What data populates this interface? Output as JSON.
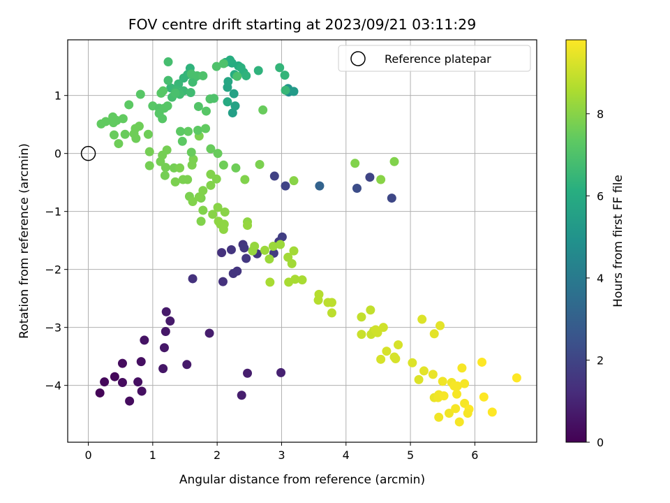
{
  "chart_data": {
    "type": "scatter",
    "title": "FOV centre drift starting at 2023/09/21 03:11:29",
    "xlabel": "Angular distance from reference (arcmin)",
    "ylabel": "Rotation from reference (arcmin)",
    "xlim": [
      -0.32,
      6.96
    ],
    "ylim": [
      -4.98,
      1.96
    ],
    "xticks": [
      0,
      1,
      2,
      3,
      4,
      5,
      6
    ],
    "yticks": [
      -4,
      -3,
      -2,
      -1,
      0,
      1
    ],
    "grid": true,
    "legend": {
      "position": "top-right",
      "entries": [
        "Reference platepar"
      ]
    },
    "reference_point": {
      "x": 0,
      "y": 0
    },
    "colorbar": {
      "label": "Hours from first FF file",
      "range": [
        0,
        9.8
      ],
      "ticks": [
        0,
        2,
        4,
        6,
        8
      ],
      "colormap": "viridis"
    },
    "points": [
      [
        0.18,
        -4.13,
        0.1
      ],
      [
        0.25,
        -3.94,
        0.2
      ],
      [
        0.41,
        -3.85,
        0.2
      ],
      [
        0.53,
        -3.95,
        0.3
      ],
      [
        0.53,
        -3.62,
        0.3
      ],
      [
        0.64,
        -4.27,
        0.3
      ],
      [
        0.77,
        -3.94,
        0.4
      ],
      [
        0.83,
        -4.1,
        0.4
      ],
      [
        0.82,
        -3.59,
        0.4
      ],
      [
        0.87,
        -3.22,
        0.5
      ],
      [
        1.16,
        -3.71,
        0.6
      ],
      [
        1.18,
        -3.35,
        0.6
      ],
      [
        1.2,
        -3.07,
        0.6
      ],
      [
        1.21,
        -2.73,
        0.7
      ],
      [
        1.27,
        -2.89,
        0.7
      ],
      [
        1.53,
        -3.64,
        0.7
      ],
      [
        1.88,
        -3.1,
        0.8
      ],
      [
        2.38,
        -4.17,
        0.8
      ],
      [
        2.47,
        -3.79,
        0.8
      ],
      [
        2.99,
        -3.78,
        0.9
      ],
      [
        1.62,
        -2.16,
        1.4
      ],
      [
        2.07,
        -1.71,
        1.4
      ],
      [
        2.09,
        -2.21,
        1.4
      ],
      [
        2.22,
        -1.66,
        1.5
      ],
      [
        2.25,
        -2.07,
        1.5
      ],
      [
        2.31,
        -2.03,
        1.5
      ],
      [
        2.4,
        -1.57,
        1.5
      ],
      [
        2.45,
        -1.81,
        1.6
      ],
      [
        2.42,
        -1.63,
        1.6
      ],
      [
        2.62,
        -1.73,
        1.6
      ],
      [
        2.88,
        -1.72,
        1.7
      ],
      [
        2.96,
        -1.52,
        1.7
      ],
      [
        3.01,
        -1.44,
        1.8
      ],
      [
        2.89,
        -0.39,
        1.9
      ],
      [
        3.06,
        -0.56,
        2.0
      ],
      [
        4.37,
        -0.41,
        2.0
      ],
      [
        4.71,
        -0.77,
        2.1
      ],
      [
        4.17,
        -0.6,
        2.3
      ],
      [
        3.59,
        -0.56,
        3.1
      ],
      [
        3.11,
        1.06,
        4.8
      ],
      [
        3.1,
        1.12,
        5.1
      ],
      [
        3.19,
        1.07,
        5.3
      ],
      [
        2.24,
        0.7,
        5.5
      ],
      [
        2.28,
        0.82,
        5.6
      ],
      [
        2.26,
        1.03,
        5.6
      ],
      [
        2.16,
        1.14,
        5.7
      ],
      [
        2.17,
        1.24,
        5.8
      ],
      [
        2.16,
        0.89,
        5.9
      ],
      [
        2.27,
        1.36,
        6.0
      ],
      [
        2.33,
        1.51,
        6.0
      ],
      [
        2.23,
        1.56,
        6.0
      ],
      [
        2.2,
        1.61,
        6.1
      ],
      [
        2.13,
        1.57,
        6.1
      ],
      [
        2.37,
        1.48,
        6.2
      ],
      [
        2.41,
        1.4,
        6.2
      ],
      [
        2.45,
        1.34,
        6.3
      ],
      [
        2.64,
        1.43,
        6.3
      ],
      [
        2.97,
        1.48,
        6.4
      ],
      [
        3.05,
        1.35,
        6.4
      ],
      [
        3.06,
        1.09,
        6.5
      ],
      [
        1.58,
        1.47,
        6.3
      ],
      [
        1.54,
        1.36,
        6.4
      ],
      [
        1.48,
        1.3,
        6.4
      ],
      [
        1.4,
        1.2,
        6.5
      ],
      [
        1.28,
        1.13,
        6.5
      ],
      [
        1.36,
        1.09,
        6.6
      ],
      [
        1.48,
        1.08,
        6.6
      ],
      [
        1.59,
        1.05,
        6.7
      ],
      [
        1.62,
        1.23,
        6.7
      ],
      [
        1.66,
        1.32,
        6.7
      ],
      [
        1.42,
        1.02,
        6.7
      ],
      [
        1.3,
        0.97,
        6.8
      ],
      [
        1.24,
        1.26,
        6.8
      ],
      [
        1.24,
        1.58,
        6.8
      ],
      [
        1.35,
        1.04,
        6.9
      ],
      [
        1.6,
        1.37,
        6.9
      ],
      [
        1.69,
        1.34,
        6.9
      ],
      [
        1.78,
        1.34,
        7.0
      ],
      [
        1.99,
        1.5,
        7.0
      ],
      [
        2.1,
        1.55,
        7.0
      ],
      [
        2.31,
        1.33,
        6.9
      ],
      [
        1.89,
        0.94,
        7.1
      ],
      [
        1.95,
        0.95,
        7.0
      ],
      [
        1.83,
        0.73,
        7.2
      ],
      [
        1.71,
        0.81,
        7.1
      ],
      [
        1.0,
        0.82,
        7.2
      ],
      [
        1.1,
        0.78,
        7.1
      ],
      [
        1.1,
        0.69,
        7.2
      ],
      [
        1.18,
        0.78,
        7.2
      ],
      [
        1.15,
        0.6,
        7.2
      ],
      [
        1.23,
        0.82,
        7.2
      ],
      [
        1.13,
        1.04,
        7.2
      ],
      [
        1.16,
        1.08,
        7.2
      ],
      [
        0.81,
        1.02,
        7.2
      ],
      [
        0.63,
        0.84,
        7.3
      ],
      [
        0.38,
        0.63,
        7.4
      ],
      [
        0.27,
        0.55,
        7.4
      ],
      [
        0.2,
        0.51,
        7.4
      ],
      [
        0.44,
        0.57,
        7.4
      ],
      [
        0.39,
        0.53,
        7.4
      ],
      [
        0.54,
        0.6,
        7.4
      ],
      [
        0.57,
        0.33,
        7.5
      ],
      [
        0.4,
        0.32,
        7.5
      ],
      [
        0.47,
        0.17,
        7.6
      ],
      [
        0.71,
        0.34,
        7.6
      ],
      [
        0.74,
        0.26,
        7.6
      ],
      [
        0.73,
        0.43,
        7.6
      ],
      [
        0.79,
        0.47,
        7.6
      ],
      [
        0.93,
        0.33,
        7.6
      ],
      [
        0.95,
        0.03,
        7.7
      ],
      [
        0.95,
        -0.21,
        7.7
      ],
      [
        1.12,
        -0.14,
        7.7
      ],
      [
        1.15,
        -0.03,
        7.7
      ],
      [
        1.22,
        0.06,
        7.7
      ],
      [
        1.2,
        -0.24,
        7.7
      ],
      [
        1.19,
        -0.38,
        7.7
      ],
      [
        1.33,
        -0.25,
        7.7
      ],
      [
        1.42,
        -0.25,
        7.8
      ],
      [
        1.35,
        -0.49,
        7.8
      ],
      [
        1.47,
        -0.45,
        7.8
      ],
      [
        1.54,
        -0.45,
        7.8
      ],
      [
        1.61,
        -0.2,
        7.8
      ],
      [
        1.63,
        -0.1,
        7.8
      ],
      [
        1.72,
        0.3,
        7.8
      ],
      [
        1.75,
        -0.77,
        7.8
      ],
      [
        1.57,
        -0.74,
        7.8
      ],
      [
        1.62,
        -0.83,
        7.9
      ],
      [
        1.72,
        -0.75,
        7.9
      ],
      [
        1.78,
        -0.64,
        7.9
      ],
      [
        1.78,
        -0.98,
        7.9
      ],
      [
        1.75,
        -1.17,
        7.9
      ],
      [
        1.9,
        -0.55,
        7.9
      ],
      [
        1.9,
        -0.36,
        7.9
      ],
      [
        1.99,
        -0.44,
        7.9
      ],
      [
        2.01,
        -0.93,
        8.0
      ],
      [
        2.12,
        -1.01,
        8.0
      ],
      [
        1.93,
        -1.05,
        8.0
      ],
      [
        2.02,
        -1.17,
        8.1
      ],
      [
        2.05,
        -1.22,
        8.1
      ],
      [
        2.1,
        -1.31,
        8.1
      ],
      [
        2.11,
        -1.22,
        8.1
      ],
      [
        2.47,
        -1.18,
        8.1
      ],
      [
        2.47,
        -1.24,
        8.2
      ],
      [
        2.58,
        -1.6,
        8.2
      ],
      [
        2.55,
        -1.68,
        8.2
      ],
      [
        2.74,
        -1.67,
        8.3
      ],
      [
        2.81,
        -1.82,
        8.3
      ],
      [
        2.87,
        -1.6,
        8.3
      ],
      [
        2.98,
        -1.57,
        8.3
      ],
      [
        3.1,
        -1.79,
        8.4
      ],
      [
        3.16,
        -1.9,
        8.4
      ],
      [
        3.19,
        -1.68,
        8.4
      ],
      [
        2.82,
        -2.22,
        8.5
      ],
      [
        3.11,
        -2.22,
        8.5
      ],
      [
        3.21,
        -2.17,
        8.5
      ],
      [
        3.32,
        -2.18,
        8.5
      ],
      [
        2.43,
        -0.45,
        7.9
      ],
      [
        2.66,
        -0.19,
        7.8
      ],
      [
        3.19,
        -0.47,
        8.0
      ],
      [
        4.14,
        -0.17,
        7.9
      ],
      [
        4.54,
        -0.45,
        8.0
      ],
      [
        4.75,
        -0.14,
        7.9
      ],
      [
        2.1,
        -0.2,
        7.6
      ],
      [
        2.01,
        0.0,
        7.5
      ],
      [
        1.9,
        0.08,
        7.5
      ],
      [
        1.55,
        0.38,
        7.4
      ],
      [
        1.6,
        0.02,
        7.5
      ],
      [
        1.43,
        0.38,
        7.3
      ],
      [
        1.7,
        0.4,
        7.3
      ],
      [
        1.82,
        0.43,
        7.4
      ],
      [
        1.46,
        0.21,
        7.3
      ],
      [
        2.29,
        -0.25,
        7.6
      ],
      [
        2.71,
        0.75,
        7.5
      ],
      [
        3.58,
        -2.43,
        8.7
      ],
      [
        3.57,
        -2.53,
        8.7
      ],
      [
        3.72,
        -2.57,
        8.8
      ],
      [
        3.78,
        -2.57,
        8.8
      ],
      [
        3.78,
        -2.75,
        8.8
      ],
      [
        4.24,
        -2.82,
        8.9
      ],
      [
        4.38,
        -2.7,
        8.9
      ],
      [
        4.24,
        -3.12,
        9.0
      ],
      [
        4.39,
        -3.12,
        9.0
      ],
      [
        4.43,
        -3.06,
        9.0
      ],
      [
        4.49,
        -3.09,
        9.1
      ],
      [
        4.46,
        -3.04,
        9.1
      ],
      [
        4.58,
        -3.0,
        9.1
      ],
      [
        4.54,
        -3.55,
        9.2
      ],
      [
        4.63,
        -3.41,
        9.2
      ],
      [
        4.75,
        -3.51,
        9.2
      ],
      [
        4.77,
        -3.54,
        9.2
      ],
      [
        4.81,
        -3.3,
        9.2
      ],
      [
        5.03,
        -3.61,
        9.3
      ],
      [
        5.13,
        -3.9,
        9.3
      ],
      [
        5.21,
        -3.75,
        9.4
      ],
      [
        5.18,
        -2.86,
        9.3
      ],
      [
        5.37,
        -3.11,
        9.4
      ],
      [
        5.46,
        -2.97,
        9.4
      ],
      [
        5.35,
        -3.81,
        9.5
      ],
      [
        5.37,
        -4.21,
        9.5
      ],
      [
        5.43,
        -4.21,
        9.6
      ],
      [
        5.44,
        -4.16,
        9.6
      ],
      [
        5.5,
        -3.93,
        9.6
      ],
      [
        5.44,
        -4.55,
        9.6
      ],
      [
        5.6,
        -4.48,
        9.6
      ],
      [
        5.64,
        -3.95,
        9.6
      ],
      [
        5.72,
        -4.15,
        9.7
      ],
      [
        5.7,
        -4.4,
        9.7
      ],
      [
        5.76,
        -4.63,
        9.7
      ],
      [
        5.73,
        -4.01,
        9.7
      ],
      [
        5.8,
        -3.7,
        9.7
      ],
      [
        5.84,
        -3.97,
        9.7
      ],
      [
        5.84,
        -4.31,
        9.7
      ],
      [
        5.91,
        -4.41,
        9.8
      ],
      [
        5.89,
        -4.48,
        9.7
      ],
      [
        6.11,
        -3.6,
        9.8
      ],
      [
        6.14,
        -4.2,
        9.8
      ],
      [
        6.27,
        -4.46,
        9.8
      ],
      [
        6.65,
        -3.87,
        9.8
      ],
      [
        5.68,
        -4.01,
        9.7
      ],
      [
        5.52,
        -4.18,
        9.7
      ]
    ]
  }
}
